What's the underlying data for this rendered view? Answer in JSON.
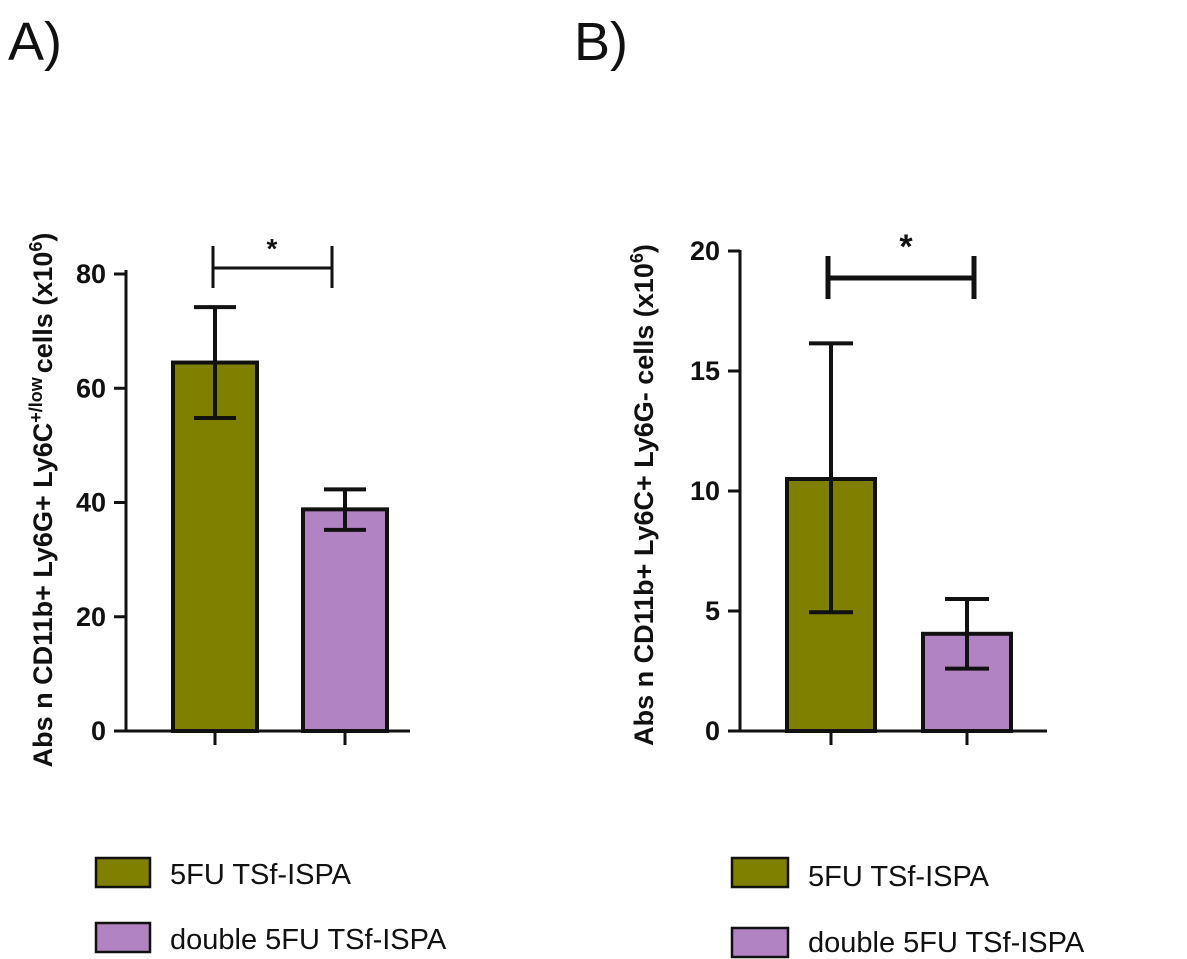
{
  "chart_data": [
    {
      "type": "bar",
      "panel_label": "A)",
      "categories": [
        "5FU TSf-ISPA",
        "double 5FU TSf-ISPA"
      ],
      "values": [
        64.5,
        38.8
      ],
      "error": [
        [
          54.8,
          74.2
        ],
        [
          35.2,
          42.3
        ]
      ],
      "ylabel": {
        "main": "Abs n CD11b+ Ly6G+ Ly6C",
        "sup": "+/low",
        "tail": "cells (x10",
        "exp": "6",
        "close": ")"
      },
      "ylim": [
        0,
        80
      ],
      "yticks": [
        "0",
        "20",
        "40",
        "60",
        "80"
      ],
      "significance": "*",
      "legend": [
        "5FU TSf-ISPA",
        "double 5FU TSf-ISPA"
      ],
      "colors": [
        "#7f7f00",
        "#b283c3"
      ]
    },
    {
      "type": "bar",
      "panel_label": "B)",
      "categories": [
        "5FU TSf-ISPA",
        "double 5FU TSf-ISPA"
      ],
      "values": [
        10.5,
        4.05
      ],
      "error": [
        [
          4.95,
          16.15
        ],
        [
          2.6,
          5.5
        ]
      ],
      "ylabel": {
        "main": "Abs n CD11b+ Ly6C+ Ly6G- cells (x10",
        "exp": "6",
        "close": ")"
      },
      "ylim": [
        0,
        20
      ],
      "yticks": [
        "0",
        "5",
        "10",
        "15",
        "20"
      ],
      "significance": "*",
      "legend": [
        "5FU TSf-ISPA",
        "double 5FU TSf-ISPA"
      ],
      "colors": [
        "#7f7f00",
        "#b283c3"
      ]
    }
  ]
}
